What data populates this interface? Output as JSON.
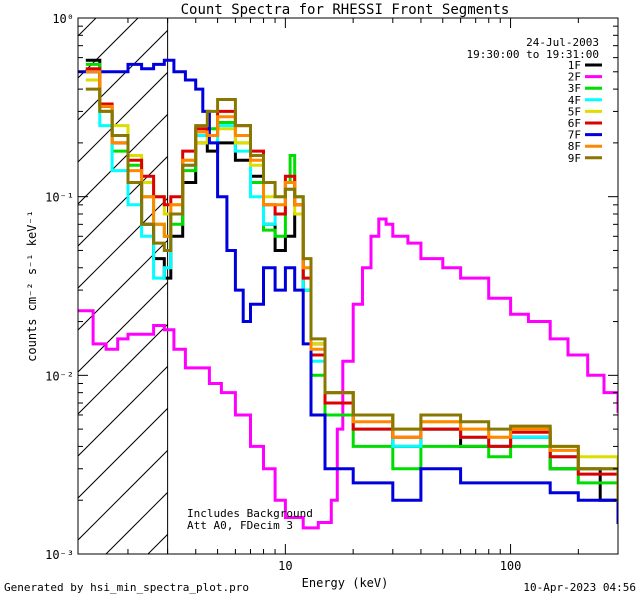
{
  "chart_data": {
    "type": "line",
    "title": "Count Spectra for RHESSI Front Segments",
    "xlabel": "Energy (keV)",
    "ylabel": "counts cm⁻² s⁻¹ keV⁻¹",
    "xscale": "log",
    "yscale": "log",
    "xlim": [
      1.2,
      300
    ],
    "ylim": [
      0.001,
      1.0
    ],
    "x_ticks": [
      {
        "value": 10,
        "label": "10"
      },
      {
        "value": 100,
        "label": "100"
      }
    ],
    "y_ticks": [
      {
        "value": 0.001,
        "label": "10⁻³"
      },
      {
        "value": 0.01,
        "label": "10⁻²"
      },
      {
        "value": 0.1,
        "label": "10⁻¹"
      },
      {
        "value": 1,
        "label": "10⁰"
      }
    ],
    "hatched_region": {
      "x_from": 1.2,
      "x_to": 3.0
    },
    "vertical_marker": 3.0,
    "date": "24-Jul-2003",
    "time_range": "19:30:00 to 19:31:00",
    "annotation": [
      "Includes Background",
      "Att A0, FDecim 3"
    ],
    "legend_position": "top-right",
    "series": [
      {
        "name": "1F",
        "color": "#000000",
        "points": [
          [
            1.3,
            0.58
          ],
          [
            1.5,
            0.32
          ],
          [
            1.7,
            0.2
          ],
          [
            2.0,
            0.12
          ],
          [
            2.3,
            0.07
          ],
          [
            2.6,
            0.045
          ],
          [
            2.9,
            0.035
          ],
          [
            3.1,
            0.06
          ],
          [
            3.5,
            0.12
          ],
          [
            4.0,
            0.2
          ],
          [
            4.5,
            0.18
          ],
          [
            5.0,
            0.2
          ],
          [
            6.0,
            0.16
          ],
          [
            7.0,
            0.13
          ],
          [
            8.0,
            0.07
          ],
          [
            9.0,
            0.05
          ],
          [
            10.0,
            0.06
          ],
          [
            11.0,
            0.08
          ],
          [
            12.0,
            0.03
          ],
          [
            13.0,
            0.015
          ],
          [
            15.0,
            0.008
          ],
          [
            20.0,
            0.006
          ],
          [
            30.0,
            0.004
          ],
          [
            40.0,
            0.005
          ],
          [
            60.0,
            0.004
          ],
          [
            80.0,
            0.004
          ],
          [
            100.0,
            0.0045
          ],
          [
            150.0,
            0.003
          ],
          [
            200.0,
            0.003
          ],
          [
            250.0,
            0.002
          ],
          [
            300.0,
            0.0018
          ]
        ]
      },
      {
        "name": "2F",
        "color": "#ff00ff",
        "points": [
          [
            1.2,
            0.023
          ],
          [
            1.4,
            0.015
          ],
          [
            1.6,
            0.014
          ],
          [
            1.8,
            0.016
          ],
          [
            2.0,
            0.017
          ],
          [
            2.3,
            0.017
          ],
          [
            2.6,
            0.019
          ],
          [
            2.9,
            0.018
          ],
          [
            3.2,
            0.014
          ],
          [
            3.6,
            0.011
          ],
          [
            4.0,
            0.011
          ],
          [
            4.6,
            0.009
          ],
          [
            5.2,
            0.008
          ],
          [
            6.0,
            0.006
          ],
          [
            7.0,
            0.004
          ],
          [
            8.0,
            0.003
          ],
          [
            9.0,
            0.002
          ],
          [
            10.0,
            0.0016
          ],
          [
            12.0,
            0.0014
          ],
          [
            14.0,
            0.0015
          ],
          [
            16.0,
            0.002
          ],
          [
            17.0,
            0.005
          ],
          [
            18.0,
            0.012
          ],
          [
            20.0,
            0.025
          ],
          [
            22.0,
            0.04
          ],
          [
            24.0,
            0.06
          ],
          [
            26.0,
            0.075
          ],
          [
            28.0,
            0.07
          ],
          [
            30.0,
            0.06
          ],
          [
            35.0,
            0.055
          ],
          [
            40.0,
            0.045
          ],
          [
            50.0,
            0.04
          ],
          [
            60.0,
            0.035
          ],
          [
            80.0,
            0.027
          ],
          [
            100.0,
            0.022
          ],
          [
            120.0,
            0.02
          ],
          [
            150.0,
            0.016
          ],
          [
            180.0,
            0.013
          ],
          [
            220.0,
            0.01
          ],
          [
            260.0,
            0.008
          ],
          [
            300.0,
            0.0063
          ]
        ]
      },
      {
        "name": "3F",
        "color": "#00dd00",
        "points": [
          [
            1.3,
            0.55
          ],
          [
            1.5,
            0.3
          ],
          [
            1.7,
            0.18
          ],
          [
            2.0,
            0.15
          ],
          [
            2.3,
            0.1
          ],
          [
            2.6,
            0.07
          ],
          [
            2.9,
            0.06
          ],
          [
            3.1,
            0.07
          ],
          [
            3.5,
            0.14
          ],
          [
            4.0,
            0.22
          ],
          [
            4.5,
            0.24
          ],
          [
            5.0,
            0.26
          ],
          [
            6.0,
            0.2
          ],
          [
            7.0,
            0.12
          ],
          [
            8.0,
            0.065
          ],
          [
            9.0,
            0.06
          ],
          [
            10.0,
            0.12
          ],
          [
            10.5,
            0.17
          ],
          [
            11.0,
            0.1
          ],
          [
            12.0,
            0.03
          ],
          [
            13.0,
            0.01
          ],
          [
            15.0,
            0.006
          ],
          [
            20.0,
            0.004
          ],
          [
            30.0,
            0.003
          ],
          [
            40.0,
            0.004
          ],
          [
            60.0,
            0.004
          ],
          [
            80.0,
            0.0035
          ],
          [
            100.0,
            0.004
          ],
          [
            150.0,
            0.003
          ],
          [
            200.0,
            0.0025
          ],
          [
            300.0,
            0.0015
          ]
        ]
      },
      {
        "name": "4F",
        "color": "#00ffff",
        "points": [
          [
            1.3,
            0.5
          ],
          [
            1.5,
            0.25
          ],
          [
            1.7,
            0.14
          ],
          [
            2.0,
            0.09
          ],
          [
            2.3,
            0.06
          ],
          [
            2.6,
            0.035
          ],
          [
            2.9,
            0.04
          ],
          [
            3.1,
            0.08
          ],
          [
            3.5,
            0.15
          ],
          [
            4.0,
            0.22
          ],
          [
            4.5,
            0.2
          ],
          [
            5.0,
            0.25
          ],
          [
            6.0,
            0.18
          ],
          [
            7.0,
            0.1
          ],
          [
            8.0,
            0.07
          ],
          [
            9.0,
            0.08
          ],
          [
            10.0,
            0.11
          ],
          [
            11.0,
            0.09
          ],
          [
            12.0,
            0.03
          ],
          [
            13.0,
            0.012
          ],
          [
            15.0,
            0.007
          ],
          [
            20.0,
            0.005
          ],
          [
            30.0,
            0.004
          ],
          [
            40.0,
            0.005
          ],
          [
            60.0,
            0.0045
          ],
          [
            80.0,
            0.004
          ],
          [
            100.0,
            0.0045
          ],
          [
            150.0,
            0.0035
          ],
          [
            200.0,
            0.003
          ],
          [
            300.0,
            0.002
          ]
        ]
      },
      {
        "name": "5F",
        "color": "#dddd00",
        "points": [
          [
            1.3,
            0.45
          ],
          [
            1.5,
            0.3
          ],
          [
            1.7,
            0.25
          ],
          [
            2.0,
            0.17
          ],
          [
            2.3,
            0.12
          ],
          [
            2.6,
            0.1
          ],
          [
            2.9,
            0.08
          ],
          [
            3.1,
            0.09
          ],
          [
            3.5,
            0.16
          ],
          [
            4.0,
            0.2
          ],
          [
            4.5,
            0.22
          ],
          [
            5.0,
            0.24
          ],
          [
            6.0,
            0.2
          ],
          [
            7.0,
            0.15
          ],
          [
            8.0,
            0.1
          ],
          [
            9.0,
            0.1
          ],
          [
            10.0,
            0.12
          ],
          [
            11.0,
            0.08
          ],
          [
            12.0,
            0.04
          ],
          [
            13.0,
            0.015
          ],
          [
            15.0,
            0.008
          ],
          [
            20.0,
            0.006
          ],
          [
            30.0,
            0.005
          ],
          [
            40.0,
            0.0055
          ],
          [
            60.0,
            0.005
          ],
          [
            80.0,
            0.0045
          ],
          [
            100.0,
            0.005
          ],
          [
            150.0,
            0.004
          ],
          [
            200.0,
            0.0035
          ],
          [
            300.0,
            0.0022
          ]
        ]
      },
      {
        "name": "6F",
        "color": "#dd0000",
        "points": [
          [
            1.3,
            0.52
          ],
          [
            1.5,
            0.33
          ],
          [
            1.7,
            0.22
          ],
          [
            2.0,
            0.16
          ],
          [
            2.3,
            0.13
          ],
          [
            2.6,
            0.1
          ],
          [
            2.9,
            0.09
          ],
          [
            3.1,
            0.1
          ],
          [
            3.5,
            0.18
          ],
          [
            4.0,
            0.24
          ],
          [
            4.5,
            0.22
          ],
          [
            5.0,
            0.3
          ],
          [
            6.0,
            0.25
          ],
          [
            7.0,
            0.18
          ],
          [
            8.0,
            0.09
          ],
          [
            9.0,
            0.08
          ],
          [
            10.0,
            0.13
          ],
          [
            11.0,
            0.09
          ],
          [
            12.0,
            0.035
          ],
          [
            13.0,
            0.013
          ],
          [
            15.0,
            0.007
          ],
          [
            20.0,
            0.005
          ],
          [
            30.0,
            0.0045
          ],
          [
            40.0,
            0.005
          ],
          [
            60.0,
            0.0045
          ],
          [
            80.0,
            0.004
          ],
          [
            100.0,
            0.0048
          ],
          [
            150.0,
            0.0035
          ],
          [
            200.0,
            0.0028
          ],
          [
            300.0,
            0.0018
          ]
        ]
      },
      {
        "name": "7F",
        "color": "#0000dd",
        "points": [
          [
            1.2,
            0.5
          ],
          [
            1.5,
            0.5
          ],
          [
            1.8,
            0.5
          ],
          [
            2.0,
            0.55
          ],
          [
            2.3,
            0.52
          ],
          [
            2.6,
            0.55
          ],
          [
            2.9,
            0.58
          ],
          [
            3.2,
            0.5
          ],
          [
            3.6,
            0.45
          ],
          [
            4.0,
            0.4
          ],
          [
            4.3,
            0.3
          ],
          [
            4.6,
            0.2
          ],
          [
            5.0,
            0.1
          ],
          [
            5.5,
            0.05
          ],
          [
            6.0,
            0.03
          ],
          [
            6.5,
            0.02
          ],
          [
            7.0,
            0.025
          ],
          [
            8.0,
            0.04
          ],
          [
            9.0,
            0.03
          ],
          [
            10.0,
            0.04
          ],
          [
            11.0,
            0.03
          ],
          [
            12.0,
            0.015
          ],
          [
            13.0,
            0.006
          ],
          [
            15.0,
            0.003
          ],
          [
            20.0,
            0.0025
          ],
          [
            30.0,
            0.002
          ],
          [
            40.0,
            0.003
          ],
          [
            60.0,
            0.0025
          ],
          [
            80.0,
            0.0025
          ],
          [
            100.0,
            0.0025
          ],
          [
            150.0,
            0.0022
          ],
          [
            200.0,
            0.002
          ],
          [
            300.0,
            0.0015
          ]
        ]
      },
      {
        "name": "8F",
        "color": "#ff8800",
        "points": [
          [
            1.3,
            0.5
          ],
          [
            1.5,
            0.32
          ],
          [
            1.7,
            0.2
          ],
          [
            2.0,
            0.14
          ],
          [
            2.3,
            0.1
          ],
          [
            2.6,
            0.07
          ],
          [
            2.9,
            0.06
          ],
          [
            3.1,
            0.09
          ],
          [
            3.5,
            0.16
          ],
          [
            4.0,
            0.23
          ],
          [
            4.5,
            0.22
          ],
          [
            5.0,
            0.28
          ],
          [
            6.0,
            0.22
          ],
          [
            7.0,
            0.16
          ],
          [
            8.0,
            0.09
          ],
          [
            9.0,
            0.09
          ],
          [
            10.0,
            0.12
          ],
          [
            11.0,
            0.09
          ],
          [
            12.0,
            0.04
          ],
          [
            13.0,
            0.014
          ],
          [
            15.0,
            0.008
          ],
          [
            20.0,
            0.0055
          ],
          [
            30.0,
            0.0045
          ],
          [
            40.0,
            0.0055
          ],
          [
            60.0,
            0.005
          ],
          [
            80.0,
            0.0045
          ],
          [
            100.0,
            0.005
          ],
          [
            150.0,
            0.0038
          ],
          [
            200.0,
            0.003
          ],
          [
            300.0,
            0.002
          ]
        ]
      },
      {
        "name": "9F",
        "color": "#887700",
        "points": [
          [
            1.3,
            0.4
          ],
          [
            1.5,
            0.3
          ],
          [
            1.7,
            0.22
          ],
          [
            2.0,
            0.12
          ],
          [
            2.3,
            0.07
          ],
          [
            2.6,
            0.055
          ],
          [
            2.9,
            0.05
          ],
          [
            3.1,
            0.08
          ],
          [
            3.5,
            0.15
          ],
          [
            4.0,
            0.25
          ],
          [
            4.5,
            0.3
          ],
          [
            5.0,
            0.35
          ],
          [
            6.0,
            0.25
          ],
          [
            7.0,
            0.17
          ],
          [
            8.0,
            0.12
          ],
          [
            9.0,
            0.1
          ],
          [
            10.0,
            0.11
          ],
          [
            11.0,
            0.1
          ],
          [
            12.0,
            0.045
          ],
          [
            13.0,
            0.016
          ],
          [
            15.0,
            0.008
          ],
          [
            20.0,
            0.006
          ],
          [
            30.0,
            0.005
          ],
          [
            40.0,
            0.006
          ],
          [
            60.0,
            0.0055
          ],
          [
            80.0,
            0.005
          ],
          [
            100.0,
            0.0052
          ],
          [
            150.0,
            0.004
          ],
          [
            200.0,
            0.003
          ],
          [
            300.0,
            0.002
          ]
        ]
      }
    ]
  },
  "footer": {
    "generated_by": "Generated by hsi_min_spectra_plot.pro",
    "timestamp": "10-Apr-2023 04:56"
  }
}
